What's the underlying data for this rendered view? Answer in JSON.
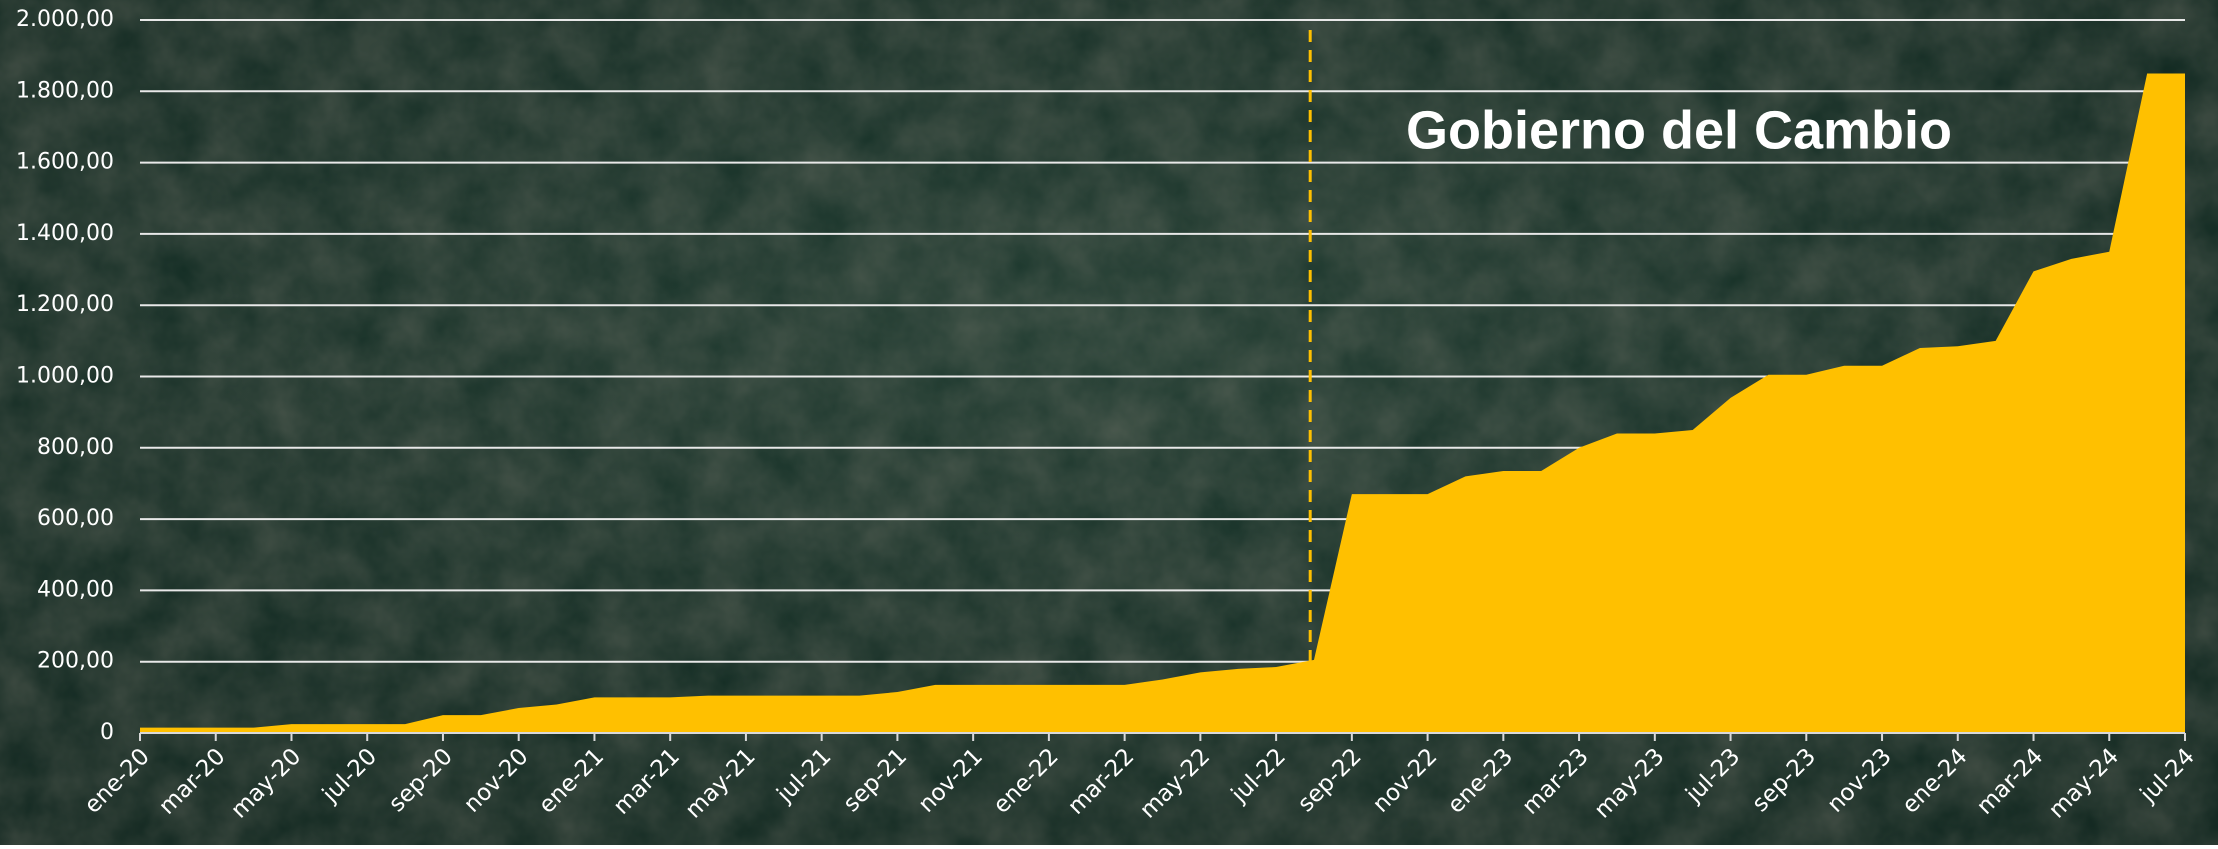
{
  "chart_data": {
    "type": "area",
    "annotation": "Gobierno del Cambio",
    "categories": [
      "ene-20",
      null,
      "mar-20",
      null,
      "may-20",
      null,
      "jul-20",
      null,
      "sep-20",
      null,
      "nov-20",
      null,
      "ene-21",
      null,
      "mar-21",
      null,
      "may-21",
      null,
      "jul-21",
      null,
      "sep-21",
      null,
      "nov-21",
      null,
      "ene-22",
      null,
      "mar-22",
      null,
      "may-22",
      null,
      "jul-22",
      null,
      "sep-22",
      null,
      "nov-22",
      null,
      "ene-23",
      null,
      "mar-23",
      null,
      "may-23",
      null,
      "jul-23",
      null,
      "sep-23",
      null,
      "nov-23",
      null,
      "ene-24",
      null,
      "mar-24",
      null,
      "may-24",
      null,
      "jul-24"
    ],
    "values": [
      15,
      15,
      15,
      15,
      25,
      25,
      25,
      25,
      50,
      50,
      70,
      80,
      100,
      100,
      100,
      105,
      105,
      105,
      105,
      105,
      115,
      135,
      135,
      135,
      135,
      135,
      135,
      150,
      170,
      180,
      185,
      205,
      670,
      670,
      670,
      720,
      735,
      735,
      800,
      840,
      840,
      850,
      940,
      1005,
      1005,
      1030,
      1030,
      1080,
      1085,
      1100,
      1295,
      1330,
      1350,
      1850,
      1850
    ],
    "color": "#ffc000",
    "ylim": [
      0,
      2000
    ],
    "yticks": [
      0,
      {
        "value": 200,
        "label": "200,00"
      },
      {
        "value": 400,
        "label": "400,00"
      },
      {
        "value": 600,
        "label": "600,00"
      },
      {
        "value": 800,
        "label": "800,00"
      },
      {
        "value": 1000,
        "label": "1.000,00"
      },
      {
        "value": 1200,
        "label": "1.200,00"
      },
      {
        "value": 1400,
        "label": "1.400,00"
      },
      {
        "value": 1600,
        "label": "1.600,00"
      },
      {
        "value": 1800,
        "label": "1.800,00"
      },
      {
        "value": 2000,
        "label": "2.000,00"
      }
    ],
    "grid": true
  }
}
